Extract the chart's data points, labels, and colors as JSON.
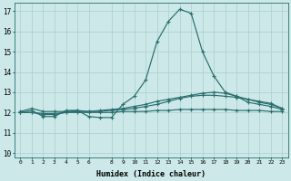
{
  "x_hours": [
    0,
    1,
    2,
    3,
    4,
    5,
    6,
    7,
    8,
    9,
    10,
    11,
    12,
    13,
    14,
    15,
    16,
    17,
    18,
    19,
    20,
    21,
    22,
    23
  ],
  "line1": [
    12.0,
    12.1,
    11.8,
    11.8,
    12.1,
    12.1,
    11.8,
    11.75,
    11.75,
    12.4,
    12.8,
    13.6,
    15.5,
    16.5,
    17.1,
    16.9,
    15.0,
    13.8,
    13.0,
    12.8,
    12.5,
    12.4,
    12.3,
    12.15
  ],
  "line2": [
    12.05,
    12.2,
    12.05,
    12.05,
    12.05,
    12.1,
    12.05,
    12.05,
    12.1,
    12.15,
    12.2,
    12.3,
    12.4,
    12.55,
    12.7,
    12.8,
    12.85,
    12.85,
    12.8,
    12.75,
    12.65,
    12.55,
    12.45,
    12.2
  ],
  "line3": [
    12.0,
    12.0,
    11.95,
    11.95,
    12.0,
    12.0,
    12.0,
    12.0,
    12.0,
    12.05,
    12.05,
    12.05,
    12.1,
    12.1,
    12.15,
    12.15,
    12.15,
    12.15,
    12.15,
    12.1,
    12.1,
    12.1,
    12.05,
    12.05
  ],
  "line4": [
    12.0,
    12.0,
    11.9,
    11.9,
    12.0,
    12.05,
    12.05,
    12.1,
    12.15,
    12.2,
    12.3,
    12.4,
    12.55,
    12.65,
    12.75,
    12.85,
    12.95,
    13.0,
    12.95,
    12.8,
    12.65,
    12.5,
    12.4,
    12.2
  ],
  "line_color": "#2a6e6e",
  "bg_color": "#cce8e8",
  "grid_color": "#aacfcf",
  "xlabel": "Humidex (Indice chaleur)",
  "ylim": [
    9.8,
    17.4
  ],
  "xlim": [
    -0.5,
    23.5
  ],
  "yticks": [
    10,
    11,
    12,
    13,
    14,
    15,
    16,
    17
  ],
  "xticks": [
    0,
    1,
    2,
    3,
    4,
    5,
    6,
    8,
    9,
    10,
    11,
    12,
    13,
    14,
    15,
    16,
    17,
    18,
    19,
    20,
    21,
    22,
    23
  ],
  "marker": "+"
}
